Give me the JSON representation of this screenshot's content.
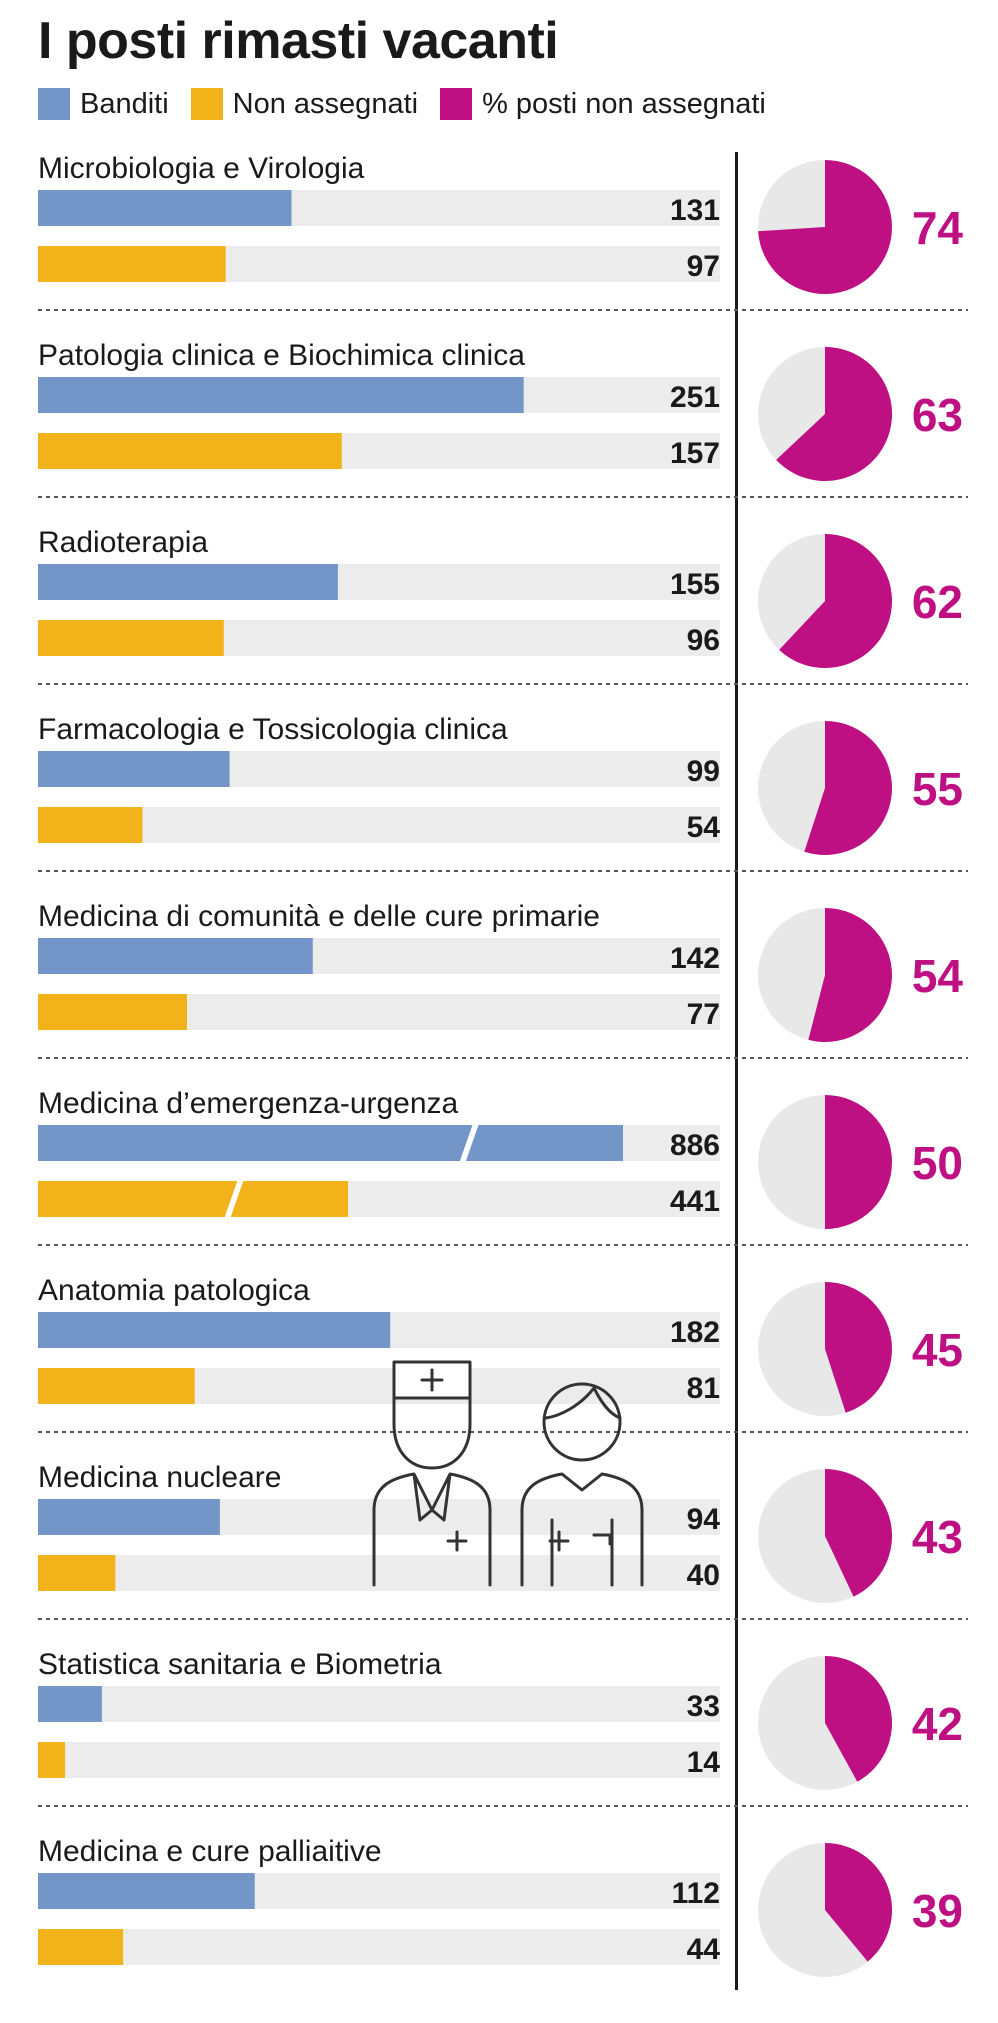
{
  "title": "I posti rimasti vacanti",
  "legend": [
    {
      "label": "Banditi",
      "color": "#7395c8"
    },
    {
      "label": "Non assegnati",
      "color": "#f2b21a"
    },
    {
      "label": "% posti non assegnati",
      "color": "#be0f83"
    }
  ],
  "colors": {
    "banditi": "#7395c8",
    "non_assegnati": "#f2b21a",
    "percent": "#be0f83",
    "track": "#ececec",
    "pie_background": "#e8e8e8"
  },
  "chart_data": {
    "type": "bar",
    "title": "I posti rimasti vacanti",
    "categories": [
      "Microbiologia e Virologia",
      "Patologia clinica e Biochimica clinica",
      "Radioterapia",
      "Farmacologia e Tossicologia clinica",
      "Medicina di comunità e delle cure primarie",
      "Medicina d’emergenza-urgenza",
      "Anatomia patologica",
      "Medicina nucleare",
      "Statistica sanitaria e Biometria",
      "Medicina e cure palliaitive"
    ],
    "series": [
      {
        "name": "Banditi",
        "values": [
          131,
          251,
          155,
          99,
          142,
          886,
          182,
          94,
          33,
          112
        ]
      },
      {
        "name": "Non assegnati",
        "values": [
          97,
          157,
          96,
          54,
          77,
          441,
          81,
          40,
          14,
          44
        ]
      },
      {
        "name": "% posti non assegnati",
        "values": [
          74,
          63,
          62,
          55,
          54,
          50,
          45,
          43,
          42,
          39
        ]
      }
    ],
    "broken_axis_categories": [
      "Medicina d’emergenza-urgenza"
    ],
    "pie_type": "pie",
    "legend_position": "top",
    "grid": false
  }
}
